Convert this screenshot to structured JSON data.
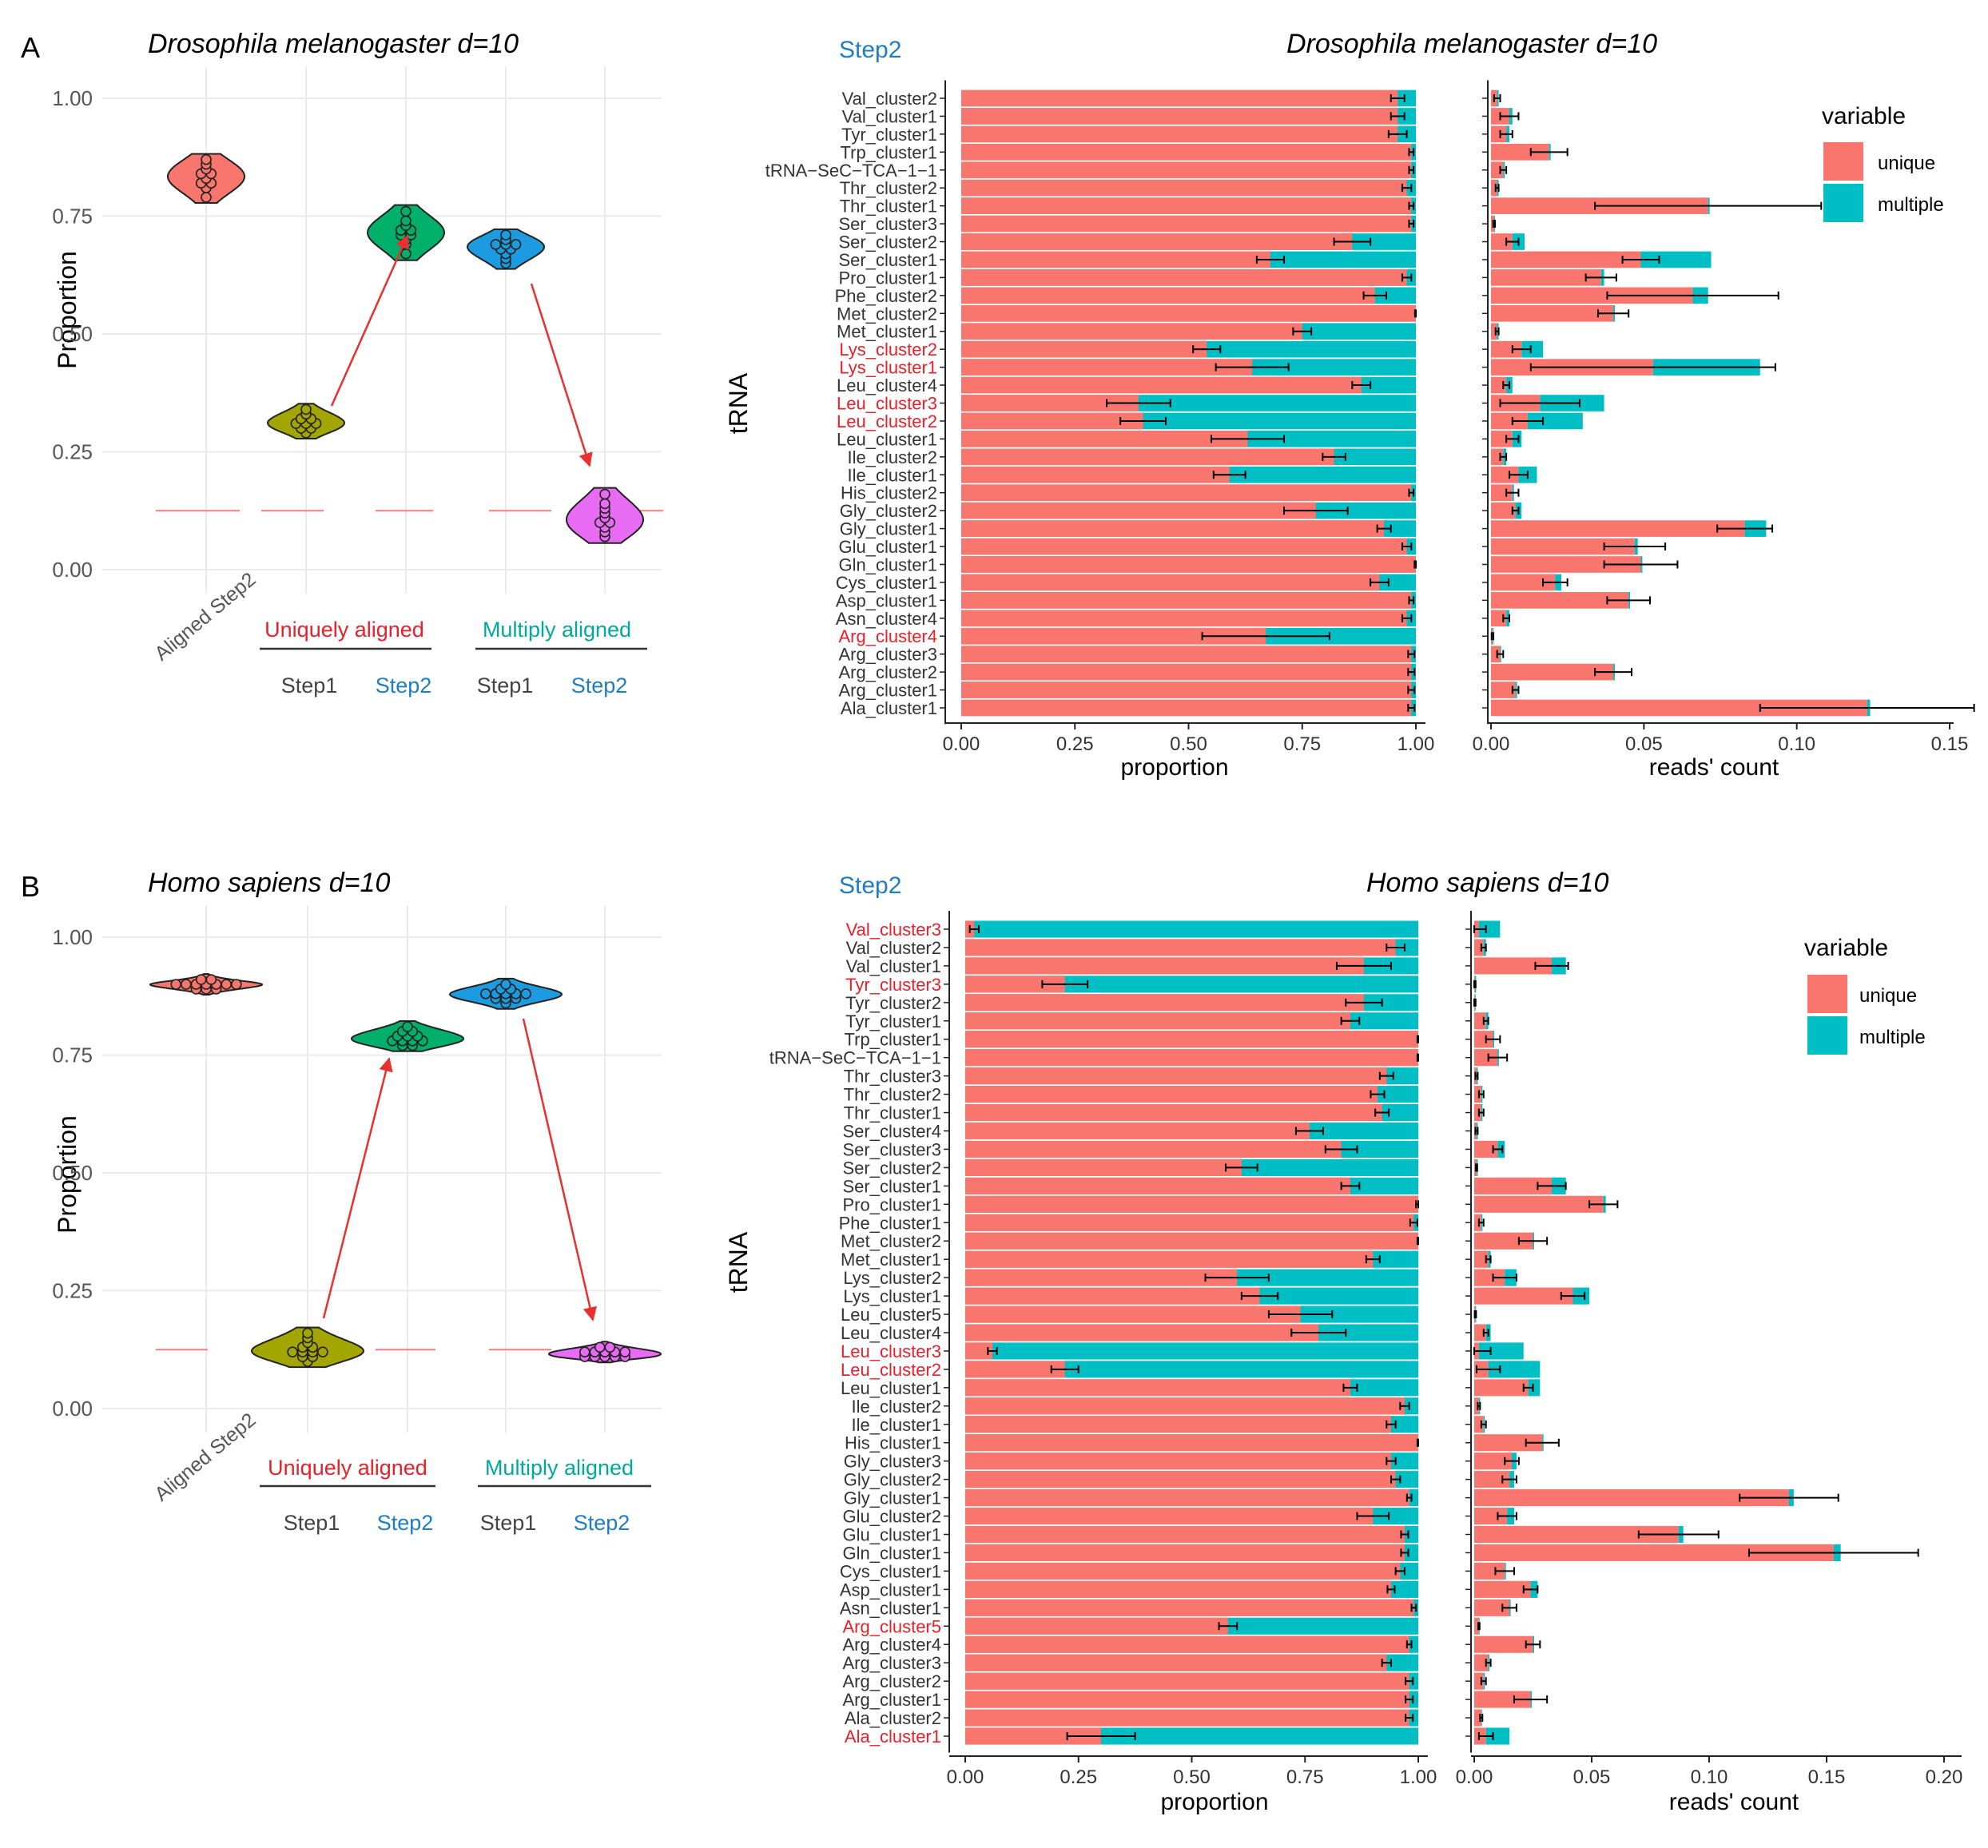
{
  "colors": {
    "unique": "#F8766D",
    "multiple": "#00BFC4",
    "step_blue": "#1F7DC4",
    "red_label": "#E8202A",
    "teal_label": "#00A99D",
    "arrow": "#E8302E",
    "grid": "#EBEBEB",
    "violin_aligned": "#F8766D",
    "violin_uniq_step1": "#A3A500",
    "violin_uniq_step2": "#00B06A",
    "violin_mult_step1": "#1D9BE0",
    "violin_mult_step2": "#E76BF3"
  },
  "chart_data": [
    {
      "type": "violin",
      "panel_letter": "A",
      "title": "Drosophila melanogaster d=10",
      "ylabel": "Proportion",
      "ylim": [
        0,
        1
      ],
      "yticks": [
        "0.00",
        "0.25",
        "0.50",
        "0.75",
        "1.00"
      ],
      "reference_line": 0.125,
      "x_label_aligned": "Aligned Step2",
      "group_uniquely": "Uniquely aligned",
      "group_multiply": "Multiply aligned",
      "sub_step1": "Step1",
      "sub_step2": "Step2",
      "series": [
        {
          "name": "Aligned Step2",
          "values": [
            0.79,
            0.81,
            0.82,
            0.82,
            0.83,
            0.84,
            0.84,
            0.85,
            0.86,
            0.87
          ]
        },
        {
          "name": "Uniquely aligned Step1",
          "values": [
            0.29,
            0.3,
            0.3,
            0.31,
            0.31,
            0.31,
            0.32,
            0.32,
            0.33,
            0.34
          ]
        },
        {
          "name": "Uniquely aligned Step2",
          "values": [
            0.67,
            0.69,
            0.7,
            0.71,
            0.71,
            0.72,
            0.72,
            0.73,
            0.74,
            0.76
          ]
        },
        {
          "name": "Multiply aligned Step1",
          "values": [
            0.65,
            0.66,
            0.67,
            0.68,
            0.68,
            0.69,
            0.69,
            0.69,
            0.7,
            0.71
          ]
        },
        {
          "name": "Multiply aligned Step2",
          "values": [
            0.07,
            0.08,
            0.09,
            0.1,
            0.1,
            0.11,
            0.12,
            0.13,
            0.14,
            0.16
          ]
        }
      ]
    },
    {
      "type": "stacked_bar",
      "panel_letter": "A",
      "step_label": "Step2",
      "title": "Drosophila melanogaster d=10",
      "ylabel": "tRNA",
      "xlabel_left": "proportion",
      "xlabel_right": "reads' count",
      "left_xticks": [
        "0.00",
        "0.25",
        "0.50",
        "0.75",
        "1.00"
      ],
      "right_xticks": [
        "0.00",
        "0.05",
        "0.10",
        "0.15"
      ],
      "right_xlim": [
        0,
        0.16
      ],
      "legend_title": "variable",
      "legend_items": [
        "unique",
        "multiple"
      ],
      "categories": [
        "Val_cluster2",
        "Val_cluster1",
        "Tyr_cluster1",
        "Trp_cluster1",
        "tRNA−SeC−TCA−1−1",
        "Thr_cluster2",
        "Thr_cluster1",
        "Ser_cluster3",
        "Ser_cluster2",
        "Ser_cluster1",
        "Pro_cluster1",
        "Phe_cluster2",
        "Met_cluster2",
        "Met_cluster1",
        "Lys_cluster2",
        "Lys_cluster1",
        "Leu_cluster4",
        "Leu_cluster3",
        "Leu_cluster2",
        "Leu_cluster1",
        "Ile_cluster2",
        "Ile_cluster1",
        "His_cluster2",
        "Gly_cluster2",
        "Gly_cluster1",
        "Glu_cluster1",
        "Gln_cluster1",
        "Cys_cluster1",
        "Asp_cluster1",
        "Asn_cluster4",
        "Arg_cluster4",
        "Arg_cluster3",
        "Arg_cluster2",
        "Arg_cluster1",
        "Ala_cluster1"
      ],
      "highlighted": [
        "Lys_cluster2",
        "Lys_cluster1",
        "Leu_cluster3",
        "Leu_cluster2",
        "Arg_cluster4"
      ],
      "unique_prop": [
        0.96,
        0.96,
        0.96,
        0.99,
        0.99,
        0.98,
        0.99,
        0.99,
        0.86,
        0.68,
        0.98,
        0.91,
        1.0,
        0.75,
        0.54,
        0.64,
        0.88,
        0.39,
        0.4,
        0.63,
        0.82,
        0.59,
        0.99,
        0.78,
        0.93,
        0.98,
        1.0,
        0.92,
        0.99,
        0.98,
        0.67,
        0.99,
        0.99,
        0.99,
        0.99
      ],
      "unique_err": [
        0.015,
        0.015,
        0.02,
        0.005,
        0.005,
        0.01,
        0.005,
        0.005,
        0.04,
        0.03,
        0.01,
        0.025,
        0.002,
        0.02,
        0.03,
        0.08,
        0.02,
        0.07,
        0.05,
        0.08,
        0.025,
        0.035,
        0.005,
        0.07,
        0.015,
        0.01,
        0.003,
        0.02,
        0.005,
        0.01,
        0.14,
        0.007,
        0.007,
        0.007,
        0.007
      ],
      "unique_count": [
        0.002,
        0.006,
        0.005,
        0.019,
        0.004,
        0.002,
        0.071,
        0.001,
        0.007,
        0.049,
        0.036,
        0.066,
        0.04,
        0.002,
        0.01,
        0.053,
        0.005,
        0.016,
        0.012,
        0.007,
        0.004,
        0.009,
        0.007,
        0.008,
        0.083,
        0.047,
        0.049,
        0.021,
        0.045,
        0.005,
        0.0005,
        0.003,
        0.04,
        0.008,
        0.123
      ],
      "multiple_count": [
        0.0005,
        0.001,
        0.001,
        0.0005,
        0.0005,
        0.0005,
        0.0005,
        0.0003,
        0.004,
        0.023,
        0.001,
        0.005,
        0.0005,
        0.0005,
        0.007,
        0.035,
        0.002,
        0.021,
        0.018,
        0.003,
        0.001,
        0.006,
        0.0005,
        0.002,
        0.007,
        0.001,
        0.0005,
        0.002,
        0.0005,
        0.001,
        0.0003,
        0.0003,
        0.0005,
        0.0005,
        0.001
      ],
      "count_err": [
        0.001,
        0.003,
        0.002,
        0.006,
        0.001,
        0.0005,
        0.037,
        0.0003,
        0.002,
        0.006,
        0.005,
        0.028,
        0.005,
        0.0005,
        0.003,
        0.04,
        0.001,
        0.013,
        0.005,
        0.002,
        0.001,
        0.003,
        0.002,
        0.001,
        0.009,
        0.01,
        0.012,
        0.004,
        0.007,
        0.001,
        0.0003,
        0.001,
        0.006,
        0.001,
        0.035
      ]
    },
    {
      "type": "violin",
      "panel_letter": "B",
      "title": "Homo sapiens d=10",
      "ylabel": "Proportion",
      "ylim": [
        0,
        1
      ],
      "yticks": [
        "0.00",
        "0.25",
        "0.50",
        "0.75",
        "1.00"
      ],
      "reference_line": 0.125,
      "x_label_aligned": "Aligned Step2",
      "group_uniquely": "Uniquely aligned",
      "group_multiply": "Multiply aligned",
      "sub_step1": "Step1",
      "sub_step2": "Step2",
      "series": [
        {
          "name": "Aligned Step2",
          "values": [
            0.89,
            0.89,
            0.89,
            0.9,
            0.9,
            0.9,
            0.9,
            0.9,
            0.9,
            0.9,
            0.91,
            0.91
          ]
        },
        {
          "name": "Uniquely aligned Step1",
          "values": [
            0.1,
            0.11,
            0.11,
            0.12,
            0.12,
            0.12,
            0.12,
            0.13,
            0.13,
            0.14,
            0.15,
            0.16
          ]
        },
        {
          "name": "Uniquely aligned Step2",
          "values": [
            0.77,
            0.77,
            0.78,
            0.78,
            0.78,
            0.78,
            0.79,
            0.79,
            0.79,
            0.8,
            0.8,
            0.81
          ]
        },
        {
          "name": "Multiply aligned Step1",
          "values": [
            0.86,
            0.87,
            0.87,
            0.87,
            0.88,
            0.88,
            0.88,
            0.88,
            0.88,
            0.89,
            0.89,
            0.9
          ]
        },
        {
          "name": "Multiply aligned Step2",
          "values": [
            0.11,
            0.11,
            0.11,
            0.11,
            0.11,
            0.12,
            0.12,
            0.12,
            0.12,
            0.12,
            0.13,
            0.13
          ]
        }
      ]
    },
    {
      "type": "stacked_bar",
      "panel_letter": "B",
      "step_label": "Step2",
      "title": "Homo sapiens d=10",
      "ylabel": "tRNA",
      "xlabel_left": "proportion",
      "xlabel_right": "reads' count",
      "left_xticks": [
        "0.00",
        "0.25",
        "0.50",
        "0.75",
        "1.00"
      ],
      "right_xticks": [
        "0.00",
        "0.05",
        "0.10",
        "0.15",
        "0.20"
      ],
      "right_xlim": [
        0,
        0.2
      ],
      "legend_title": "variable",
      "legend_items": [
        "unique",
        "multiple"
      ],
      "categories": [
        "Val_cluster3",
        "Val_cluster2",
        "Val_cluster1",
        "Tyr_cluster3",
        "Tyr_cluster2",
        "Tyr_cluster1",
        "Trp_cluster1",
        "tRNA−SeC−TCA−1−1",
        "Thr_cluster3",
        "Thr_cluster2",
        "Thr_cluster1",
        "Ser_cluster4",
        "Ser_cluster3",
        "Ser_cluster2",
        "Ser_cluster1",
        "Pro_cluster1",
        "Phe_cluster1",
        "Met_cluster2",
        "Met_cluster1",
        "Lys_cluster2",
        "Lys_cluster1",
        "Leu_cluster5",
        "Leu_cluster4",
        "Leu_cluster3",
        "Leu_cluster2",
        "Leu_cluster1",
        "Ile_cluster2",
        "Ile_cluster1",
        "His_cluster1",
        "Gly_cluster3",
        "Gly_cluster2",
        "Gly_cluster1",
        "Glu_cluster2",
        "Glu_cluster1",
        "Gln_cluster1",
        "Cys_cluster1",
        "Asp_cluster1",
        "Asn_cluster1",
        "Arg_cluster5",
        "Arg_cluster4",
        "Arg_cluster3",
        "Arg_cluster2",
        "Arg_cluster1",
        "Ala_cluster2",
        "Ala_cluster1"
      ],
      "highlighted": [
        "Val_cluster3",
        "Tyr_cluster3",
        "Leu_cluster3",
        "Leu_cluster2",
        "Arg_cluster5",
        "Ala_cluster1"
      ],
      "unique_prop": [
        0.02,
        0.95,
        0.88,
        0.22,
        0.88,
        0.85,
        1.0,
        1.0,
        0.93,
        0.91,
        0.92,
        0.76,
        0.83,
        0.61,
        0.85,
        1.0,
        0.99,
        1.0,
        0.9,
        0.6,
        0.65,
        0.74,
        0.78,
        0.06,
        0.22,
        0.85,
        0.97,
        0.94,
        1.0,
        0.94,
        0.95,
        0.98,
        0.9,
        0.97,
        0.97,
        0.96,
        0.94,
        0.99,
        0.58,
        0.98,
        0.93,
        0.98,
        0.98,
        0.98,
        0.3
      ],
      "unique_err": [
        0.01,
        0.02,
        0.06,
        0.05,
        0.04,
        0.02,
        0.002,
        0.002,
        0.015,
        0.015,
        0.015,
        0.03,
        0.035,
        0.035,
        0.02,
        0.005,
        0.008,
        0.002,
        0.015,
        0.07,
        0.04,
        0.07,
        0.06,
        0.01,
        0.03,
        0.015,
        0.01,
        0.01,
        0.002,
        0.01,
        0.01,
        0.005,
        0.035,
        0.008,
        0.008,
        0.01,
        0.008,
        0.005,
        0.02,
        0.005,
        0.01,
        0.008,
        0.008,
        0.008,
        0.075
      ],
      "unique_count": [
        0.002,
        0.004,
        0.033,
        0.0003,
        0.0003,
        0.005,
        0.008,
        0.01,
        0.001,
        0.003,
        0.003,
        0.001,
        0.01,
        0.001,
        0.033,
        0.055,
        0.003,
        0.025,
        0.006,
        0.013,
        0.042,
        0.0005,
        0.005,
        0.002,
        0.006,
        0.023,
        0.002,
        0.004,
        0.029,
        0.016,
        0.015,
        0.134,
        0.014,
        0.087,
        0.153,
        0.013,
        0.024,
        0.015,
        0.002,
        0.025,
        0.006,
        0.004,
        0.024,
        0.003,
        0.005
      ],
      "multiple_count": [
        0.009,
        0.001,
        0.006,
        0.0005,
        0.0003,
        0.001,
        0.0005,
        0.0005,
        0.0005,
        0.0005,
        0.0005,
        0.0005,
        0.003,
        0.0005,
        0.006,
        0.001,
        0.0005,
        0.0005,
        0.001,
        0.005,
        0.007,
        0.0003,
        0.002,
        0.019,
        0.022,
        0.005,
        0.0005,
        0.0005,
        0.0005,
        0.002,
        0.002,
        0.002,
        0.003,
        0.002,
        0.003,
        0.0005,
        0.003,
        0.0005,
        0.0003,
        0.0005,
        0.0005,
        0.0005,
        0.0005,
        0.0003,
        0.01
      ],
      "count_err": [
        0.003,
        0.001,
        0.007,
        0.0003,
        0.0003,
        0.001,
        0.003,
        0.004,
        0.0005,
        0.001,
        0.001,
        0.0005,
        0.002,
        0.0003,
        0.006,
        0.006,
        0.001,
        0.006,
        0.001,
        0.005,
        0.005,
        0.0003,
        0.001,
        0.005,
        0.005,
        0.002,
        0.0005,
        0.001,
        0.007,
        0.003,
        0.003,
        0.021,
        0.004,
        0.017,
        0.036,
        0.004,
        0.003,
        0.003,
        0.0003,
        0.003,
        0.001,
        0.001,
        0.007,
        0.0005,
        0.003
      ]
    }
  ]
}
